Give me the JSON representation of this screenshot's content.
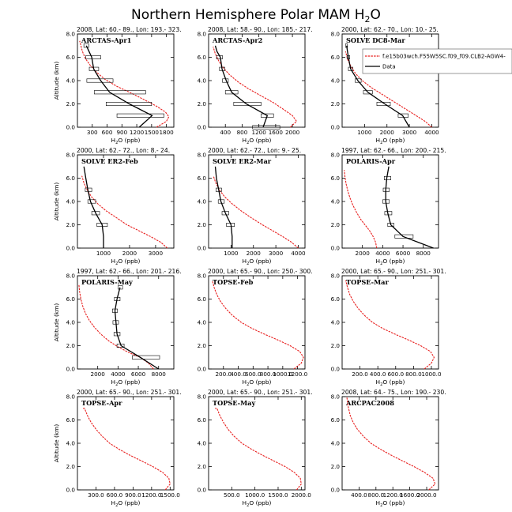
{
  "figure": {
    "title": "Northern Hemisphere Polar MAM H",
    "title_sub": "2",
    "title_end": "O",
    "model_color": "#e8201f",
    "obs_color": "#000000"
  },
  "legend": {
    "entries": [
      {
        "label": "f.e15b03wch.F55W5SC.f09_f09.CLB2-AGW4-",
        "color": "#e8201f",
        "style": "dashed"
      },
      {
        "label": "Data",
        "color": "#000000",
        "style": "solid"
      }
    ]
  },
  "chart_data": [
    {
      "type": "line",
      "header": "2008, Lat: 60.- 89., Lon: 193.- 323.",
      "label": "ARCTAS-Apr1",
      "xlabel": "H2O (ppb)",
      "ylabel": "Altitude (km)",
      "xlim": [
        0,
        1950
      ],
      "ylim": [
        0,
        8
      ],
      "xticks": [
        300,
        600,
        900,
        1200,
        1500,
        1800
      ],
      "yticks": [
        0,
        2,
        4,
        6,
        8
      ],
      "model": {
        "x": [
          1600,
          1800,
          1850,
          1780,
          1600,
          1380,
          1100,
          800,
          560,
          390,
          260,
          160,
          100,
          70,
          45
        ],
        "y": [
          0,
          0.5,
          0.9,
          1.3,
          1.8,
          2.3,
          2.9,
          3.5,
          4.1,
          4.7,
          5.3,
          5.9,
          6.5,
          7.0,
          7.4
        ]
      },
      "obs": {
        "x": [
          1250,
          1510,
          1050,
          650,
          470,
          330,
          290,
          180
        ],
        "y": [
          0,
          1,
          2,
          3,
          4,
          5,
          6,
          7
        ]
      },
      "boxes": [
        {
          "y": 1,
          "lo": 800,
          "hi": 1750
        },
        {
          "y": 2,
          "lo": 580,
          "hi": 1500
        },
        {
          "y": 3,
          "lo": 340,
          "hi": 1380
        },
        {
          "y": 4,
          "lo": 190,
          "hi": 720
        },
        {
          "y": 5,
          "lo": 240,
          "hi": 430
        },
        {
          "y": 6,
          "lo": 170,
          "hi": 470
        },
        {
          "y": 7,
          "lo": 130,
          "hi": 230
        }
      ]
    },
    {
      "type": "line",
      "header": "2008, Lat: 58.- 90., Lon: 185.- 217.",
      "label": "ARCTAS-Apr2",
      "xlabel": "H2O (ppb)",
      "ylabel": "Altitude (km)",
      "xlim": [
        0,
        2300
      ],
      "ylim": [
        0,
        8
      ],
      "xticks": [
        400,
        800,
        1200,
        1600,
        2000
      ],
      "yticks": [
        0,
        2,
        4,
        6,
        8
      ],
      "model": {
        "x": [
          1950,
          2100,
          2000,
          1800,
          1550,
          1250,
          950,
          700,
          500,
          350,
          240,
          160,
          110
        ],
        "y": [
          0,
          0.5,
          1.0,
          1.5,
          2.1,
          2.7,
          3.3,
          3.9,
          4.5,
          5.1,
          5.7,
          6.3,
          6.9
        ]
      },
      "obs": {
        "x": [
          1300,
          1400,
          900,
          550,
          420,
          320,
          280,
          200,
          160
        ],
        "y": [
          0,
          1,
          2,
          3,
          4,
          5,
          6,
          6.5,
          7
        ]
      },
      "boxes": [
        {
          "y": 0,
          "lo": 1050,
          "hi": 1700
        },
        {
          "y": 1,
          "lo": 1250,
          "hi": 1550
        },
        {
          "y": 2,
          "lo": 600,
          "hi": 1250
        },
        {
          "y": 3,
          "lo": 400,
          "hi": 700
        },
        {
          "y": 4,
          "lo": 330,
          "hi": 470
        },
        {
          "y": 5,
          "lo": 260,
          "hi": 390
        },
        {
          "y": 6,
          "lo": 190,
          "hi": 330
        }
      ]
    },
    {
      "type": "line",
      "header": "2000, Lat: 62.- 70., Lon: 10.- 25.",
      "label": "SOLVE DC8-Mar",
      "xlabel": "H2O (ppb)",
      "ylabel": "Altitude (km)",
      "xlim": [
        0,
        4300
      ],
      "ylim": [
        0,
        8
      ],
      "xticks": [
        1000,
        2000,
        3000,
        4000
      ],
      "yticks": [
        0,
        2,
        4,
        6,
        8
      ],
      "model": {
        "x": [
          4000,
          3700,
          3300,
          2800,
          2300,
          1800,
          1300,
          900,
          600,
          400,
          250,
          150
        ],
        "y": [
          0,
          0.5,
          1.0,
          1.6,
          2.2,
          2.8,
          3.4,
          4.0,
          4.6,
          5.2,
          5.8,
          6.5
        ]
      },
      "obs": {
        "x": [
          3000,
          2700,
          1900,
          1150,
          700,
          380,
          280,
          200
        ],
        "y": [
          0,
          1,
          2,
          3,
          4,
          5,
          6,
          7
        ]
      },
      "boxes": [
        {
          "y": 1,
          "lo": 2500,
          "hi": 2950
        },
        {
          "y": 2,
          "lo": 1550,
          "hi": 2150
        },
        {
          "y": 3,
          "lo": 950,
          "hi": 1350
        },
        {
          "y": 4,
          "lo": 580,
          "hi": 850
        },
        {
          "y": 5,
          "lo": 280,
          "hi": 480
        },
        {
          "y": 6,
          "lo": 220,
          "hi": 340
        },
        {
          "y": 7,
          "lo": 150,
          "hi": 240
        }
      ]
    },
    {
      "type": "line",
      "header": "2000, Lat: 62.- 72., Lon: 8.- 24.",
      "label": "SOLVE ER2-Feb",
      "xlabel": "H2O (ppb)",
      "ylabel": "Altitude (km)",
      "xlim": [
        0,
        3700
      ],
      "ylim": [
        0,
        8
      ],
      "xticks": [
        1000,
        2000,
        3000
      ],
      "yticks": [
        0,
        2,
        4,
        6,
        8
      ],
      "model": {
        "x": [
          3450,
          3200,
          2800,
          2350,
          1900,
          1500,
          1100,
          780,
          540,
          370,
          250,
          170
        ],
        "y": [
          0,
          0.5,
          1.0,
          1.5,
          2.0,
          2.6,
          3.2,
          3.8,
          4.4,
          5.0,
          5.6,
          6.2
        ]
      },
      "obs": {
        "x": [
          1000,
          1000,
          950,
          700,
          500,
          400,
          320,
          250
        ],
        "y": [
          0,
          1,
          2,
          3,
          4,
          5,
          6,
          7
        ]
      },
      "boxes": [
        {
          "y": 2,
          "lo": 750,
          "hi": 1150
        },
        {
          "y": 3,
          "lo": 550,
          "hi": 850
        },
        {
          "y": 4,
          "lo": 400,
          "hi": 700
        },
        {
          "y": 5,
          "lo": 300,
          "hi": 550
        }
      ]
    },
    {
      "type": "line",
      "header": "2000, Lat: 62.- 72., Lon: 9.- 25.",
      "label": "SOLVE ER2-Mar",
      "xlabel": "H2O (ppb)",
      "ylabel": "Altitude (km)",
      "xlim": [
        0,
        4300
      ],
      "ylim": [
        0,
        8
      ],
      "xticks": [
        1000,
        2000,
        3000,
        4000
      ],
      "yticks": [
        0,
        2,
        4,
        6,
        8
      ],
      "model": {
        "x": [
          4000,
          3700,
          3300,
          2850,
          2400,
          1900,
          1450,
          1050,
          720,
          480,
          320,
          210
        ],
        "y": [
          0,
          0.5,
          1.0,
          1.5,
          2.0,
          2.6,
          3.2,
          3.8,
          4.4,
          5.0,
          5.6,
          6.2
        ]
      },
      "obs": {
        "x": [
          1050,
          1050,
          1000,
          750,
          550,
          450,
          350,
          300
        ],
        "y": [
          0,
          1,
          2,
          3,
          4,
          5,
          6,
          7
        ]
      },
      "boxes": [
        {
          "y": 2,
          "lo": 800,
          "hi": 1150
        },
        {
          "y": 3,
          "lo": 600,
          "hi": 900
        },
        {
          "y": 4,
          "lo": 430,
          "hi": 700
        },
        {
          "y": 5,
          "lo": 330,
          "hi": 580
        }
      ]
    },
    {
      "type": "line",
      "header": "1997, Lat: 62.- 66., Lon: 200.- 215.",
      "label": "POLARIS-Apr",
      "xlabel": "H2O (ppb)",
      "ylabel": "Altitude (km)",
      "xlim": [
        0,
        9500
      ],
      "ylim": [
        0,
        8
      ],
      "xticks": [
        2000,
        4000,
        6000,
        8000
      ],
      "yticks": [
        0,
        2,
        4,
        6,
        8
      ],
      "model": {
        "x": [
          3400,
          3300,
          3050,
          2700,
          2250,
          1800,
          1400,
          1050,
          780,
          560,
          400,
          280,
          200
        ],
        "y": [
          0,
          0.5,
          1.0,
          1.5,
          2.0,
          2.5,
          3.1,
          3.7,
          4.3,
          4.9,
          5.5,
          6.1,
          6.7
        ]
      },
      "obs": {
        "x": [
          9000,
          6000,
          4800,
          4500,
          4300,
          4300,
          4400,
          4500,
          4600
        ],
        "y": [
          0,
          1,
          2,
          3,
          4,
          5,
          6,
          6.5,
          7
        ]
      },
      "boxes": [
        {
          "y": 1,
          "lo": 5200,
          "hi": 7000
        },
        {
          "y": 2,
          "lo": 4500,
          "hi": 5100
        },
        {
          "y": 3,
          "lo": 4200,
          "hi": 4900
        },
        {
          "y": 4,
          "lo": 4000,
          "hi": 4650
        },
        {
          "y": 5,
          "lo": 4050,
          "hi": 4650
        },
        {
          "y": 6,
          "lo": 4150,
          "hi": 4800
        }
      ]
    },
    {
      "type": "line",
      "header": "1997, Lat: 62.- 66., Lon: 201.- 216.",
      "label": "POLARIS-May",
      "xlabel": "H2O (ppb)",
      "ylabel": "Altitude (km)",
      "xlim": [
        0,
        9500
      ],
      "ylim": [
        0,
        8
      ],
      "xticks": [
        2000,
        4000,
        6000,
        8000
      ],
      "yticks": [
        0,
        2,
        4,
        6,
        8
      ],
      "model": {
        "x": [
          7500,
          7000,
          6200,
          5100,
          4000,
          3100,
          2300,
          1650,
          1150,
          780,
          520,
          340,
          220,
          150
        ],
        "y": [
          0,
          0.5,
          1.0,
          1.4,
          1.9,
          2.4,
          3.0,
          3.6,
          4.2,
          4.8,
          5.4,
          6.0,
          6.6,
          7.2
        ]
      },
      "obs": {
        "x": [
          8000,
          6200,
          4300,
          3900,
          3800,
          3700,
          3900,
          4200
        ],
        "y": [
          0,
          1,
          2,
          3,
          4,
          5,
          6,
          7
        ]
      },
      "boxes": [
        {
          "y": 1,
          "lo": 5400,
          "hi": 8100
        },
        {
          "y": 2,
          "lo": 3900,
          "hi": 4600
        },
        {
          "y": 3,
          "lo": 3600,
          "hi": 4200
        },
        {
          "y": 4,
          "lo": 3500,
          "hi": 4050
        },
        {
          "y": 5,
          "lo": 3450,
          "hi": 3950
        },
        {
          "y": 6,
          "lo": 3650,
          "hi": 4200
        },
        {
          "y": 7,
          "lo": 4000,
          "hi": 4450
        }
      ]
    },
    {
      "type": "line",
      "header": "2000, Lat: 65.- 90., Lon: 250.- 300.",
      "label": "TOPSE-Feb",
      "xlabel": "H2O (ppb)",
      "ylabel": "Altitude (km)",
      "xlim": [
        0,
        1300
      ],
      "ylim": [
        0,
        8
      ],
      "xticks": [
        200,
        400,
        600,
        800,
        1000,
        1200
      ],
      "xticklabels": [
        "200.0",
        "400.0",
        "600.0",
        "800.0",
        "1000.0",
        "1200.0"
      ],
      "yticks": [
        0,
        2,
        4,
        6,
        8
      ],
      "model": {
        "x": [
          1150,
          1250,
          1280,
          1230,
          1100,
          930,
          750,
          580,
          440,
          320,
          230,
          160,
          110,
          75,
          50
        ],
        "y": [
          0,
          0.5,
          1.0,
          1.5,
          2.0,
          2.5,
          3.0,
          3.5,
          4.0,
          4.6,
          5.2,
          5.8,
          6.4,
          7.0,
          7.6
        ]
      },
      "obs": null,
      "boxes": []
    },
    {
      "type": "line",
      "header": "2000, Lat: 65.- 90., Lon: 251.- 301.",
      "label": "TOPSE-Mar",
      "xlabel": "H2O (ppb)",
      "ylabel": "Altitude (km)",
      "xlim": [
        0,
        1080
      ],
      "ylim": [
        0,
        8
      ],
      "xticks": [
        200,
        400,
        600,
        800,
        1000
      ],
      "xticklabels": [
        "200.0",
        "400.0",
        "600.0",
        "800.0",
        "1000.0"
      ],
      "yticks": [
        0,
        2,
        4,
        6,
        8
      ],
      "model": {
        "x": [
          920,
          1000,
          1030,
          990,
          880,
          740,
          590,
          450,
          340,
          250,
          180,
          125,
          85,
          60,
          40
        ],
        "y": [
          0,
          0.5,
          1.0,
          1.5,
          2.0,
          2.5,
          3.0,
          3.5,
          4.0,
          4.6,
          5.2,
          5.8,
          6.4,
          7.0,
          7.6
        ]
      },
      "obs": null,
      "boxes": []
    },
    {
      "type": "line",
      "header": "2000, Lat: 65.- 90., Lon: 251.- 301.",
      "label": "TOPSE-Apr",
      "xlabel": "H2O (ppb)",
      "ylabel": "Altitude (km)",
      "xlim": [
        0,
        1560
      ],
      "ylim": [
        0,
        8
      ],
      "xticks": [
        300,
        600,
        900,
        1200,
        1500
      ],
      "xticklabels": [
        "300.0",
        "600.0",
        "900.0",
        "1200.0",
        "1500.0"
      ],
      "yticks": [
        0,
        2,
        4,
        6,
        8
      ],
      "model": {
        "x": [
          1420,
          1500,
          1480,
          1380,
          1220,
          1030,
          840,
          670,
          520,
          400,
          300,
          220,
          160,
          115,
          85
        ],
        "y": [
          0,
          0.5,
          1.0,
          1.5,
          2.0,
          2.5,
          3.0,
          3.5,
          4.0,
          4.6,
          5.2,
          5.8,
          6.4,
          7.0,
          7.0
        ]
      },
      "obs": null,
      "boxes": []
    },
    {
      "type": "line",
      "header": "2000, Lat: 65.- 90., Lon: 251.- 301.",
      "label": "TOPSE-May",
      "xlabel": "H2O (ppb)",
      "ylabel": "Altitude (km)",
      "xlim": [
        0,
        2080
      ],
      "ylim": [
        0,
        8
      ],
      "xticks": [
        500,
        1000,
        1500,
        2000
      ],
      "xticklabels": [
        "500.0",
        "1000.0",
        "1500.0",
        "2000.0"
      ],
      "yticks": [
        0,
        2,
        4,
        6,
        8
      ],
      "model": {
        "x": [
          1900,
          2000,
          1980,
          1850,
          1650,
          1400,
          1150,
          920,
          720,
          550,
          420,
          320,
          240,
          180,
          140
        ],
        "y": [
          0,
          0.5,
          1.0,
          1.5,
          2.0,
          2.5,
          3.0,
          3.5,
          4.0,
          4.6,
          5.2,
          5.8,
          6.4,
          7.0,
          7.0
        ]
      },
      "obs": null,
      "boxes": []
    },
    {
      "type": "line",
      "header": "2008, Lat: 64.- 75., Lon: 190.- 230.",
      "label": "ARCPAC2008",
      "xlabel": "H2O (ppb)",
      "ylabel": "Altitude (km)",
      "xlim": [
        0,
        2280
      ],
      "ylim": [
        0,
        8
      ],
      "xticks": [
        400,
        800,
        1200,
        1600,
        2000
      ],
      "xticklabels": [
        "400.0",
        "800.0",
        "1200.0",
        "1600.0",
        "2000.0"
      ],
      "yticks": [
        0,
        2,
        4,
        6,
        8
      ],
      "model": {
        "x": [
          2050,
          2200,
          2150,
          1950,
          1700,
          1420,
          1150,
          900,
          680,
          500,
          360,
          260,
          190,
          140,
          110
        ],
        "y": [
          0,
          0.5,
          1.0,
          1.5,
          2.0,
          2.5,
          3.0,
          3.5,
          4.0,
          4.6,
          5.2,
          5.8,
          6.4,
          7.2,
          8.0
        ]
      },
      "obs": null,
      "boxes": []
    }
  ]
}
